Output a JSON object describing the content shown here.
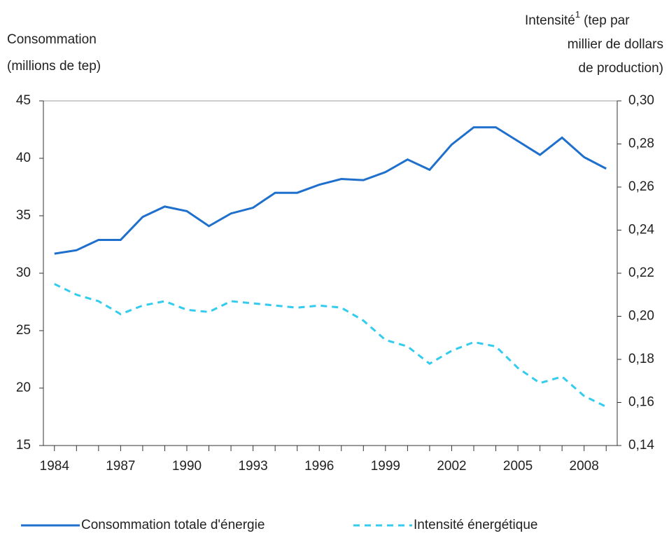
{
  "chart_data": {
    "type": "line",
    "y_label": [
      "Consommation",
      "(millions de tep)"
    ],
    "y2_label": [
      "Intensité",
      "(tep par",
      "millier de dollars",
      "de production)"
    ],
    "y2_label_note": "1",
    "categories": [
      "1984",
      null,
      null,
      "1987",
      null,
      null,
      "1990",
      null,
      null,
      "1993",
      null,
      null,
      "1996",
      null,
      null,
      "1999",
      null,
      null,
      "2002",
      null,
      null,
      "2005",
      null,
      null,
      "2008",
      null
    ],
    "series": [
      {
        "name": "Consommation totale d'énergie",
        "color": "#1f6fcc",
        "style": "solid",
        "values": [
          31.7,
          32.0,
          32.9,
          32.9,
          34.9,
          35.8,
          35.4,
          34.1,
          35.2,
          35.7,
          37.0,
          37.0,
          37.7,
          38.2,
          38.1,
          38.8,
          39.9,
          39.0,
          41.2,
          42.7,
          42.7,
          41.5,
          40.3,
          41.8,
          40.1,
          39.1
        ]
      },
      {
        "name": "Intensité énergétique",
        "color": "#33ccee",
        "style": "dashed",
        "axis": "y2",
        "values": [
          0.215,
          0.21,
          0.207,
          0.201,
          0.205,
          0.207,
          0.203,
          0.202,
          0.207,
          0.206,
          0.205,
          0.204,
          0.205,
          0.204,
          0.198,
          0.189,
          0.186,
          0.178,
          0.184,
          0.188,
          0.186,
          0.176,
          0.169,
          0.172,
          0.163,
          0.158
        ]
      }
    ],
    "ylim": [
      15,
      45
    ],
    "yticks": [
      15,
      20,
      25,
      30,
      35,
      40,
      45
    ],
    "y2lim": [
      0.14,
      0.3
    ],
    "y2ticks": [
      {
        "value": 0.14,
        "label": "0,14"
      },
      {
        "value": 0.16,
        "label": "0,16"
      },
      {
        "value": 0.18,
        "label": "0,18"
      },
      {
        "value": 0.2,
        "label": "0,20"
      },
      {
        "value": 0.22,
        "label": "0,22"
      },
      {
        "value": 0.24,
        "label": "0,24"
      },
      {
        "value": 0.26,
        "label": "0,26"
      },
      {
        "value": 0.28,
        "label": "0,28"
      },
      {
        "value": 0.3,
        "label": "0,30"
      }
    ],
    "grid": false
  }
}
